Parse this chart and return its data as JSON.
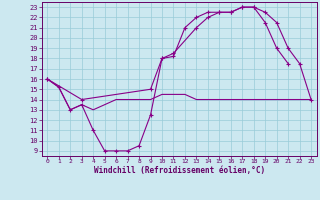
{
  "xlabel": "Windchill (Refroidissement éolien,°C)",
  "background_color": "#cce8f0",
  "grid_color": "#99ccd9",
  "line_color": "#880088",
  "xlim": [
    -0.5,
    23.5
  ],
  "ylim": [
    8.5,
    23.5
  ],
  "xticks": [
    0,
    1,
    2,
    3,
    4,
    5,
    6,
    7,
    8,
    9,
    10,
    11,
    12,
    13,
    14,
    15,
    16,
    17,
    18,
    19,
    20,
    21,
    22,
    23
  ],
  "yticks": [
    9,
    10,
    11,
    12,
    13,
    14,
    15,
    16,
    17,
    18,
    19,
    20,
    21,
    22,
    23
  ],
  "line1_x": [
    0,
    1,
    2,
    3,
    4,
    5,
    6,
    7,
    8,
    9,
    10,
    11,
    12,
    13,
    14,
    15,
    16,
    17,
    18,
    19,
    20,
    21
  ],
  "line1_y": [
    16,
    15.2,
    13,
    13.5,
    11,
    9,
    9,
    9,
    9.5,
    12.5,
    18,
    18.2,
    21,
    22,
    22.5,
    22.5,
    22.5,
    23,
    23,
    21.5,
    19,
    17.5
  ],
  "line2_x": [
    0,
    1,
    2,
    3,
    4,
    5,
    6,
    7,
    8,
    9,
    10,
    11,
    12,
    13,
    14,
    15,
    16,
    17,
    18,
    19,
    20,
    21,
    22,
    23
  ],
  "line2_y": [
    16,
    15.2,
    13,
    13.5,
    13,
    13.5,
    14,
    14,
    14,
    14,
    14.5,
    14.5,
    14.5,
    14,
    14,
    14,
    14,
    14,
    14,
    14,
    14,
    14,
    14,
    14
  ],
  "line3_x": [
    0,
    3,
    9,
    10,
    11,
    13,
    14,
    15,
    16,
    17,
    18,
    19,
    20,
    21,
    22,
    23
  ],
  "line3_y": [
    16,
    14,
    15,
    18,
    18.5,
    21,
    22,
    22.5,
    22.5,
    23,
    23,
    22.5,
    21.5,
    19,
    17.5,
    14
  ]
}
